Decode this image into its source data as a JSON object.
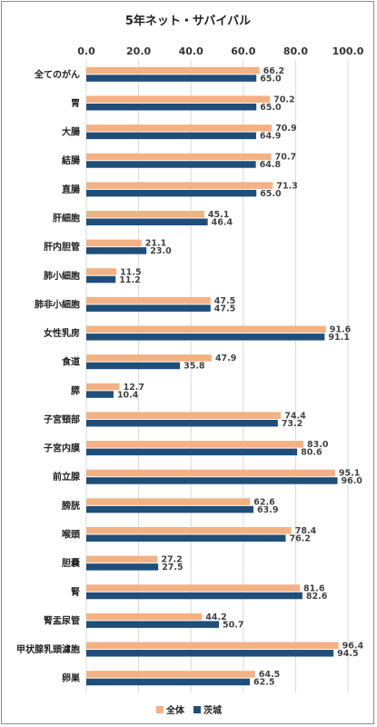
{
  "chart_data": {
    "type": "bar",
    "orientation": "horizontal",
    "title": "5年ネット・サバイバル",
    "xlim": [
      0,
      100
    ],
    "xticks": [
      0,
      20,
      40,
      60,
      80,
      100
    ],
    "tick_labels": [
      "0.0",
      "20.0",
      "40.0",
      "60.0",
      "80.0",
      "100.0"
    ],
    "xaxis_position": "top",
    "grid": true,
    "legend_position": "bottom",
    "categories": [
      "全てのがん",
      "胃",
      "大腸",
      "結腸",
      "直腸",
      "肝細胞",
      "肝内胆管",
      "肺小細胞",
      "肺非小細胞",
      "女性乳房",
      "食道",
      "膵",
      "子宮頸部",
      "子宮内膜",
      "前立腺",
      "膀胱",
      "喉頭",
      "胆嚢",
      "腎",
      "腎盂尿管",
      "甲状腺乳頭濾胞",
      "卵巣"
    ],
    "series": [
      {
        "name": "全体",
        "color": "#f4b183",
        "values": [
          66.2,
          70.2,
          70.9,
          70.7,
          71.3,
          45.1,
          21.1,
          11.5,
          47.5,
          91.6,
          47.9,
          12.7,
          74.4,
          83.0,
          95.1,
          62.6,
          78.4,
          27.2,
          81.6,
          44.2,
          96.4,
          64.5
        ]
      },
      {
        "name": "茨城",
        "color": "#1f4e79",
        "values": [
          65.0,
          65.0,
          64.9,
          64.8,
          65.0,
          46.4,
          23.0,
          11.2,
          47.5,
          91.1,
          35.8,
          10.4,
          73.2,
          80.6,
          96.0,
          63.9,
          76.2,
          27.5,
          82.6,
          50.7,
          94.5,
          62.5
        ]
      }
    ]
  }
}
